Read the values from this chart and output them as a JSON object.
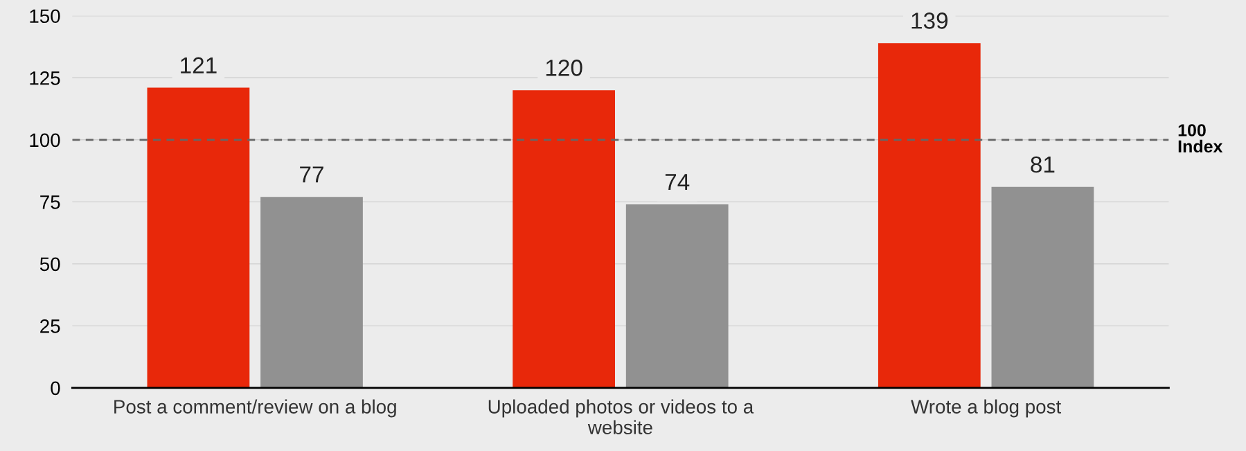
{
  "chart_data": {
    "type": "bar",
    "categories": [
      "Post a comment/review on a blog",
      "Uploaded photos or videos to a\nwebsite",
      "Wrote a blog post"
    ],
    "series": [
      {
        "color": "#e8280a",
        "values": [
          121,
          120,
          139
        ]
      },
      {
        "color": "#919191",
        "values": [
          77,
          74,
          81
        ]
      }
    ],
    "ylim": [
      0,
      150
    ],
    "yticks": [
      0,
      25,
      50,
      75,
      100,
      125,
      150
    ],
    "grid": "y",
    "data_labels": true,
    "ref_lines": [
      {
        "axis": "y",
        "value": 100,
        "label": "100\nIndex",
        "color": "#666666",
        "line_style": "dashed"
      }
    ]
  }
}
